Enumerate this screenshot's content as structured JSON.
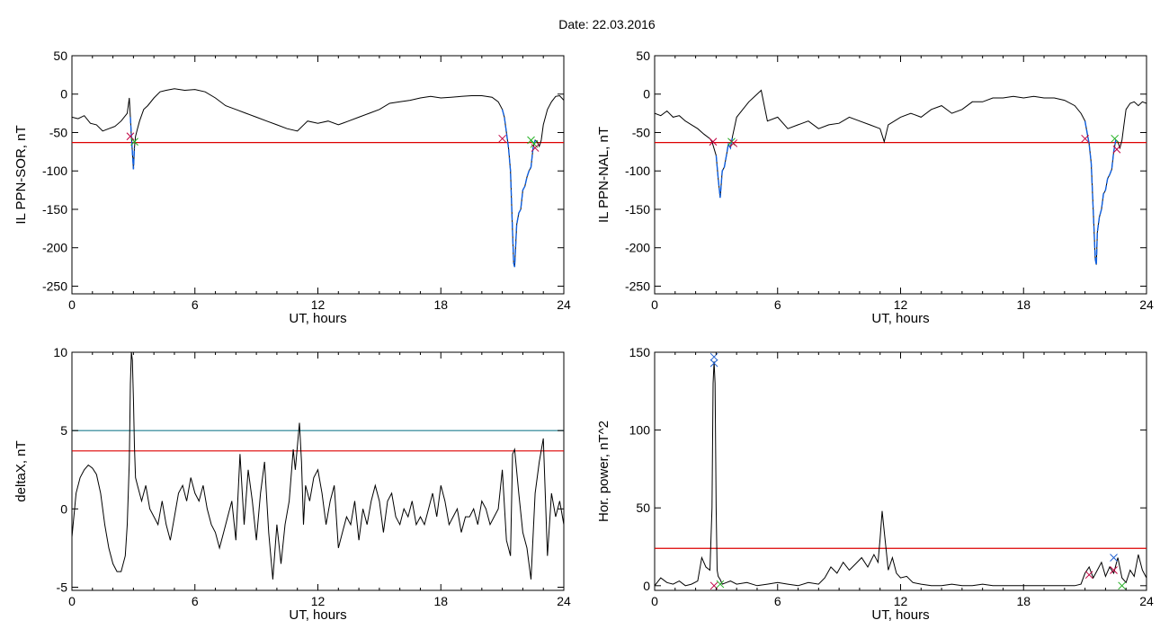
{
  "figure": {
    "title": "Date:  22.03.2016"
  },
  "colors": {
    "threshold": "#dd0000",
    "upper_threshold": "#1f7f8f",
    "event": "#1060e0",
    "start_marker": "#c00040",
    "end_marker": "#20b020",
    "peak_marker": "#2060d0",
    "line": "#000000"
  },
  "chart_data": [
    {
      "id": "ppn-sor",
      "type": "line",
      "title": "",
      "xlabel": "UT, hours",
      "ylabel": "IL PPN-SOR, nT",
      "xlim": [
        0,
        24
      ],
      "ylim": [
        -260,
        50
      ],
      "xticks": [
        0,
        6,
        12,
        18,
        24
      ],
      "yticks": [
        50,
        0,
        -50,
        -100,
        -150,
        -200,
        -250
      ],
      "grid": false,
      "hlines": [
        {
          "y": -63,
          "color": "#dd0000"
        }
      ],
      "series": [
        {
          "x": [
            0,
            0.3,
            0.6,
            0.9,
            1.2,
            1.5,
            1.8,
            2.1,
            2.4,
            2.7,
            2.8,
            2.85,
            2.9,
            2.95,
            3.0,
            3.05,
            3.1,
            3.2,
            3.3,
            3.5,
            3.7,
            4.0,
            4.3,
            4.6,
            5.0,
            5.5,
            6.0,
            6.5,
            7.0,
            7.5,
            8.0,
            8.5,
            9.0,
            9.5,
            10.0,
            10.5,
            11.0,
            11.5,
            12.0,
            12.5,
            13.0,
            13.5,
            14.0,
            14.5,
            15.0,
            15.5,
            16.0,
            16.5,
            17.0,
            17.5,
            18.0,
            18.5,
            19.0,
            19.5,
            20.0,
            20.5,
            20.8,
            21.0,
            21.1,
            21.2,
            21.3,
            21.4,
            21.5,
            21.55,
            21.6,
            21.7,
            21.8,
            21.9,
            22.0,
            22.1,
            22.2,
            22.3,
            22.4,
            22.5,
            22.6,
            22.7,
            22.8,
            22.9,
            23.0,
            23.2,
            23.4,
            23.6,
            23.8,
            24.0
          ],
          "y": [
            -30,
            -32,
            -28,
            -38,
            -40,
            -48,
            -45,
            -42,
            -35,
            -25,
            -5,
            -30,
            -55,
            -75,
            -98,
            -70,
            -55,
            -45,
            -35,
            -20,
            -15,
            -5,
            3,
            5,
            7,
            5,
            6,
            3,
            -5,
            -15,
            -20,
            -25,
            -30,
            -35,
            -40,
            -45,
            -48,
            -35,
            -38,
            -35,
            -40,
            -35,
            -30,
            -25,
            -20,
            -12,
            -10,
            -8,
            -5,
            -3,
            -5,
            -4,
            -3,
            -2,
            -2,
            -4,
            -10,
            -20,
            -30,
            -50,
            -70,
            -100,
            -180,
            -220,
            -225,
            -170,
            -155,
            -150,
            -125,
            -120,
            -108,
            -100,
            -95,
            -70,
            -60,
            -62,
            -68,
            -60,
            -40,
            -20,
            -10,
            -3,
            -2,
            -8
          ]
        }
      ],
      "markers": [
        {
          "x": 2.85,
          "y": -55,
          "color": "#c00040"
        },
        {
          "x": 3.05,
          "y": -62,
          "color": "#20b020"
        },
        {
          "x": 21.0,
          "y": -58,
          "color": "#c00040"
        },
        {
          "x": 22.4,
          "y": -60,
          "color": "#20b020"
        },
        {
          "x": 22.55,
          "y": -65,
          "color": "#20b020"
        },
        {
          "x": 22.6,
          "y": -70,
          "color": "#c00040"
        }
      ],
      "events": [
        [
          2.85,
          3.05
        ],
        [
          21.0,
          22.6
        ]
      ]
    },
    {
      "id": "ppn-nal",
      "type": "line",
      "title": "",
      "xlabel": "UT, hours",
      "ylabel": "IL PPN-NAL, nT",
      "xlim": [
        0,
        24
      ],
      "ylim": [
        -260,
        50
      ],
      "xticks": [
        0,
        6,
        12,
        18,
        24
      ],
      "yticks": [
        50,
        0,
        -50,
        -100,
        -150,
        -200,
        -250
      ],
      "grid": false,
      "hlines": [
        {
          "y": -63,
          "color": "#dd0000"
        }
      ],
      "series": [
        {
          "x": [
            0,
            0.3,
            0.6,
            0.9,
            1.2,
            1.5,
            1.8,
            2.1,
            2.4,
            2.7,
            2.8,
            3.0,
            3.1,
            3.2,
            3.3,
            3.4,
            3.5,
            3.6,
            3.7,
            3.8,
            4.0,
            4.3,
            4.6,
            5.0,
            5.2,
            5.5,
            6.0,
            6.5,
            7.0,
            7.5,
            8.0,
            8.5,
            9.0,
            9.5,
            10.0,
            10.5,
            11.0,
            11.2,
            11.4,
            12.0,
            12.5,
            13.0,
            13.5,
            14.0,
            14.5,
            15.0,
            15.5,
            16.0,
            16.5,
            17.0,
            17.5,
            18.0,
            18.5,
            19.0,
            19.5,
            20.0,
            20.5,
            20.8,
            21.0,
            21.1,
            21.2,
            21.3,
            21.4,
            21.5,
            21.55,
            21.6,
            21.7,
            21.8,
            21.9,
            22.0,
            22.1,
            22.2,
            22.3,
            22.4,
            22.5,
            22.6,
            22.7,
            22.8,
            22.9,
            23.0,
            23.2,
            23.4,
            23.6,
            23.8,
            24.0
          ],
          "y": [
            -25,
            -28,
            -22,
            -30,
            -28,
            -35,
            -40,
            -45,
            -52,
            -58,
            -62,
            -80,
            -110,
            -135,
            -100,
            -95,
            -80,
            -65,
            -70,
            -55,
            -30,
            -20,
            -10,
            0,
            5,
            -35,
            -30,
            -45,
            -40,
            -35,
            -45,
            -40,
            -38,
            -30,
            -35,
            -40,
            -45,
            -62,
            -40,
            -30,
            -25,
            -30,
            -20,
            -15,
            -25,
            -20,
            -10,
            -10,
            -5,
            -5,
            -3,
            -5,
            -3,
            -5,
            -5,
            -8,
            -15,
            -25,
            -35,
            -50,
            -65,
            -90,
            -150,
            -215,
            -222,
            -180,
            -160,
            -150,
            -130,
            -125,
            -110,
            -105,
            -98,
            -75,
            -60,
            -62,
            -70,
            -60,
            -40,
            -20,
            -12,
            -10,
            -15,
            -10,
            -12
          ]
        }
      ],
      "markers": [
        {
          "x": 2.85,
          "y": -62,
          "color": "#c00040"
        },
        {
          "x": 3.75,
          "y": -62,
          "color": "#20b020"
        },
        {
          "x": 3.85,
          "y": -64,
          "color": "#c00040"
        },
        {
          "x": 21.0,
          "y": -58,
          "color": "#c00040"
        },
        {
          "x": 22.45,
          "y": -58,
          "color": "#20b020"
        },
        {
          "x": 22.55,
          "y": -72,
          "color": "#c00040"
        }
      ],
      "events": [
        [
          2.85,
          3.85
        ],
        [
          21.0,
          22.6
        ]
      ]
    },
    {
      "id": "deltax",
      "type": "line",
      "title": "",
      "xlabel": "UT, hours",
      "ylabel": "deltaX, nT",
      "xlim": [
        0,
        24
      ],
      "ylim": [
        -5.2,
        10
      ],
      "xticks": [
        0,
        6,
        12,
        18,
        24
      ],
      "yticks": [
        10,
        5,
        0,
        -5
      ],
      "grid": false,
      "hlines": [
        {
          "y": 5.0,
          "color": "#1f7f8f"
        },
        {
          "y": 3.7,
          "color": "#dd0000"
        }
      ],
      "series": [
        {
          "x": [
            0,
            0.2,
            0.4,
            0.6,
            0.8,
            1.0,
            1.2,
            1.4,
            1.6,
            1.8,
            2.0,
            2.2,
            2.4,
            2.6,
            2.7,
            2.8,
            2.85,
            2.9,
            2.95,
            3.0,
            3.05,
            3.1,
            3.2,
            3.4,
            3.6,
            3.8,
            4.0,
            4.2,
            4.4,
            4.6,
            4.8,
            5.0,
            5.2,
            5.4,
            5.6,
            5.8,
            6.0,
            6.2,
            6.4,
            6.6,
            6.8,
            7.0,
            7.2,
            7.4,
            7.6,
            7.8,
            8.0,
            8.2,
            8.4,
            8.6,
            8.8,
            9.0,
            9.2,
            9.4,
            9.6,
            9.8,
            10.0,
            10.2,
            10.4,
            10.6,
            10.8,
            10.9,
            11.0,
            11.1,
            11.2,
            11.3,
            11.4,
            11.6,
            11.8,
            12.0,
            12.2,
            12.4,
            12.6,
            12.8,
            13.0,
            13.2,
            13.4,
            13.6,
            13.8,
            14.0,
            14.2,
            14.4,
            14.6,
            14.8,
            15.0,
            15.2,
            15.4,
            15.6,
            15.8,
            16.0,
            16.2,
            16.4,
            16.6,
            16.8,
            17.0,
            17.2,
            17.4,
            17.6,
            17.8,
            18.0,
            18.2,
            18.4,
            18.6,
            18.8,
            19.0,
            19.2,
            19.4,
            19.6,
            19.8,
            20.0,
            20.2,
            20.4,
            20.6,
            20.8,
            21.0,
            21.2,
            21.4,
            21.5,
            21.6,
            21.8,
            22.0,
            22.2,
            22.4,
            22.6,
            22.8,
            23.0,
            23.2,
            23.4,
            23.6,
            23.8,
            24.0
          ],
          "y": [
            -1.8,
            1.0,
            2.0,
            2.5,
            2.8,
            2.6,
            2.2,
            1.0,
            -1.0,
            -2.5,
            -3.5,
            -4.0,
            -4.0,
            -3.0,
            -1.0,
            3.0,
            8.0,
            10.0,
            9.5,
            7.0,
            4.0,
            2.0,
            1.5,
            0.5,
            1.5,
            0.0,
            -0.5,
            -1.0,
            0.5,
            -1.0,
            -2.0,
            -0.5,
            1.0,
            1.5,
            0.5,
            2.0,
            1.0,
            0.5,
            1.5,
            0.0,
            -1.0,
            -1.5,
            -2.5,
            -1.5,
            -0.5,
            0.5,
            -2.0,
            3.5,
            -1.0,
            2.5,
            0.5,
            -2.0,
            1.0,
            3.0,
            -1.5,
            -4.5,
            -1.0,
            -3.5,
            -1.0,
            0.5,
            3.8,
            2.5,
            4.0,
            5.5,
            3.0,
            -1.0,
            1.5,
            0.5,
            2.0,
            2.5,
            1.0,
            -1.0,
            0.5,
            1.5,
            -2.5,
            -1.5,
            -0.5,
            -1.0,
            0.5,
            -2.0,
            0.0,
            -1.0,
            0.5,
            1.5,
            0.5,
            -1.5,
            0.5,
            1.0,
            -0.5,
            -1.0,
            0.0,
            -0.5,
            0.5,
            -1.0,
            -0.5,
            -1.0,
            0.0,
            1.0,
            -0.5,
            1.5,
            0.5,
            -1.0,
            -0.5,
            0.0,
            -1.5,
            -0.5,
            -0.5,
            0.0,
            -1.0,
            0.5,
            0.0,
            -1.0,
            -0.5,
            0.0,
            2.5,
            -2.0,
            -3.0,
            3.5,
            3.8,
            1.0,
            -1.5,
            -2.5,
            -4.5,
            1.0,
            3.0,
            4.5,
            -3.0,
            1.0,
            -0.5,
            0.5,
            -1.0
          ]
        }
      ],
      "markers": [],
      "events": []
    },
    {
      "id": "hor-power",
      "type": "line",
      "title": "",
      "xlabel": "UT, hours",
      "ylabel": "Hor. power, nT^2",
      "xlim": [
        0,
        24
      ],
      "ylim": [
        -3,
        150
      ],
      "xticks": [
        0,
        6,
        12,
        18,
        24
      ],
      "yticks": [
        150,
        100,
        50,
        0
      ],
      "grid": false,
      "hlines": [
        {
          "y": 24,
          "color": "#dd0000"
        }
      ],
      "series": [
        {
          "x": [
            0,
            0.3,
            0.6,
            0.9,
            1.2,
            1.5,
            1.8,
            2.1,
            2.3,
            2.5,
            2.7,
            2.8,
            2.85,
            2.9,
            2.95,
            3.0,
            3.05,
            3.1,
            3.2,
            3.3,
            3.5,
            3.7,
            4.0,
            4.5,
            5.0,
            5.5,
            6.0,
            6.5,
            7.0,
            7.5,
            8.0,
            8.3,
            8.6,
            8.9,
            9.2,
            9.5,
            9.8,
            10.1,
            10.4,
            10.7,
            10.9,
            11.0,
            11.1,
            11.2,
            11.4,
            11.6,
            11.8,
            12.0,
            12.3,
            12.6,
            13.0,
            13.5,
            14.0,
            14.5,
            15.0,
            15.5,
            16.0,
            16.5,
            17.0,
            17.5,
            18.0,
            18.5,
            19.0,
            19.5,
            20.0,
            20.5,
            20.8,
            21.0,
            21.2,
            21.4,
            21.6,
            21.8,
            22.0,
            22.2,
            22.4,
            22.6,
            22.8,
            23.0,
            23.2,
            23.4,
            23.6,
            23.8,
            24.0
          ],
          "y": [
            0,
            5,
            2,
            1,
            3,
            0,
            1,
            3,
            18,
            12,
            10,
            50,
            130,
            144,
            130,
            50,
            10,
            6,
            4,
            1,
            2,
            3,
            1,
            2,
            0,
            1,
            2,
            1,
            0,
            2,
            1,
            5,
            12,
            8,
            15,
            10,
            14,
            18,
            12,
            20,
            15,
            30,
            48,
            35,
            10,
            18,
            8,
            5,
            6,
            2,
            1,
            0,
            0,
            1,
            0,
            0,
            1,
            0,
            0,
            0,
            0,
            0,
            0,
            0,
            0,
            0,
            1,
            8,
            12,
            5,
            10,
            15,
            6,
            12,
            8,
            18,
            5,
            2,
            10,
            6,
            20,
            10,
            5
          ]
        }
      ],
      "markers": [
        {
          "x": 2.9,
          "y": 0,
          "color": "#c00040"
        },
        {
          "x": 2.9,
          "y": 143,
          "color": "#2060d0"
        },
        {
          "x": 2.9,
          "y": 147,
          "color": "#2060d0"
        },
        {
          "x": 3.2,
          "y": 1,
          "color": "#20b020"
        },
        {
          "x": 21.2,
          "y": 7,
          "color": "#c00040"
        },
        {
          "x": 22.4,
          "y": 10,
          "color": "#c00040"
        },
        {
          "x": 22.4,
          "y": 18,
          "color": "#2060d0"
        },
        {
          "x": 22.8,
          "y": 0,
          "color": "#20b020"
        }
      ],
      "events": []
    }
  ]
}
